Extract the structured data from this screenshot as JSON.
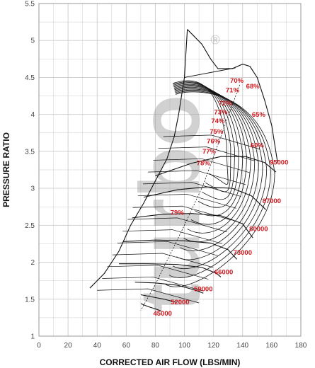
{
  "chart_data": {
    "type": "line",
    "title": "",
    "xlabel": "CORRECTED AIR FLOW (LBS/MIN)",
    "ylabel": "PRESSURE RATIO",
    "xlim": [
      0,
      180
    ],
    "ylim": [
      1,
      5.5
    ],
    "x_ticks": [
      "0",
      "20",
      "40",
      "60",
      "80",
      "100",
      "120",
      "140",
      "160",
      "180"
    ],
    "y_ticks": [
      "1",
      "1.5",
      "2",
      "2.5",
      "3",
      "3.5",
      "4",
      "4.5",
      "5",
      "5.5"
    ],
    "grid": true,
    "surge_line": [
      [
        35,
        1.65
      ],
      [
        45,
        1.85
      ],
      [
        55,
        2.15
      ],
      [
        63,
        2.5
      ],
      [
        72,
        2.8
      ],
      [
        80,
        3.1
      ],
      [
        88,
        3.4
      ],
      [
        93,
        3.7
      ],
      [
        96,
        4.0
      ],
      [
        100,
        4.5
      ],
      [
        102,
        5.15
      ]
    ],
    "speed_lines": [
      {
        "label": "45000",
        "label_at": [
          85,
          1.28
        ],
        "points": [
          [
            70,
            1.44
          ],
          [
            75,
            1.4
          ],
          [
            80,
            1.37
          ],
          [
            84,
            1.34
          ]
        ]
      },
      {
        "label": "52000",
        "label_at": [
          97,
          1.43
        ],
        "points": [
          [
            70,
            1.56
          ],
          [
            78,
            1.53
          ],
          [
            86,
            1.5
          ],
          [
            94,
            1.46
          ]
        ]
      },
      {
        "label": "59000",
        "label_at": [
          113,
          1.61
        ],
        "points": [
          [
            66,
            1.73
          ],
          [
            80,
            1.72
          ],
          [
            95,
            1.69
          ],
          [
            108,
            1.62
          ],
          [
            113,
            1.58
          ]
        ]
      },
      {
        "label": "66000",
        "label_at": [
          127,
          1.84
        ],
        "points": [
          [
            55,
            1.98
          ],
          [
            75,
            1.98
          ],
          [
            95,
            1.97
          ],
          [
            112,
            1.93
          ],
          [
            122,
            1.85
          ],
          [
            125,
            1.8
          ]
        ]
      },
      {
        "label": "73000",
        "label_at": [
          140,
          2.1
        ],
        "points": [
          [
            58,
            2.28
          ],
          [
            80,
            2.3
          ],
          [
            100,
            2.29
          ],
          [
            118,
            2.26
          ],
          [
            130,
            2.17
          ],
          [
            136,
            2.04
          ]
        ]
      },
      {
        "label": "80000",
        "label_at": [
          151,
          2.42
        ],
        "points": [
          [
            64,
            2.6
          ],
          [
            85,
            2.65
          ],
          [
            105,
            2.66
          ],
          [
            125,
            2.63
          ],
          [
            140,
            2.52
          ],
          [
            147,
            2.33
          ]
        ]
      },
      {
        "label": "87000",
        "label_at": [
          160,
          2.8
        ],
        "points": [
          [
            72,
            2.88
          ],
          [
            95,
            2.98
          ],
          [
            115,
            3.02
          ],
          [
            133,
            3.0
          ],
          [
            146,
            2.9
          ],
          [
            156,
            2.71
          ]
        ]
      },
      {
        "label": "95000",
        "label_at": [
          165,
          3.32
        ],
        "points": [
          [
            80,
            3.17
          ],
          [
            105,
            3.34
          ],
          [
            125,
            3.43
          ],
          [
            142,
            3.43
          ],
          [
            155,
            3.35
          ],
          [
            163,
            3.22
          ]
        ]
      }
    ],
    "efficiency_islands": [
      {
        "label": "60%",
        "label_at": [
          150,
          3.55
        ]
      },
      {
        "label": "65%",
        "label_at": [
          151,
          3.97
        ]
      },
      {
        "label": "68%",
        "label_at": [
          147,
          4.35
        ]
      },
      {
        "label": "70%",
        "label_at": [
          136,
          4.43
        ]
      },
      {
        "label": "71%",
        "label_at": [
          133,
          4.3
        ]
      },
      {
        "label": "72%",
        "label_at": [
          128,
          4.12
        ]
      },
      {
        "label": "73%",
        "label_at": [
          125,
          4.0
        ]
      },
      {
        "label": "74%",
        "label_at": [
          123,
          3.88
        ]
      },
      {
        "label": "75%",
        "label_at": [
          122,
          3.74
        ]
      },
      {
        "label": "76%",
        "label_at": [
          120,
          3.61
        ]
      },
      {
        "label": "77%",
        "label_at": [
          117,
          3.47
        ]
      },
      {
        "label": "78%",
        "label_at": [
          113,
          3.31
        ]
      },
      {
        "label": "79%",
        "label_at": [
          95,
          2.64
        ]
      }
    ],
    "colors": {
      "grid": "#cccccc",
      "lines": "#111111",
      "labels": "#d0181e",
      "watermark": "#9a9a9a"
    }
  },
  "watermark": {
    "text": "turbo",
    "mark": "®"
  }
}
